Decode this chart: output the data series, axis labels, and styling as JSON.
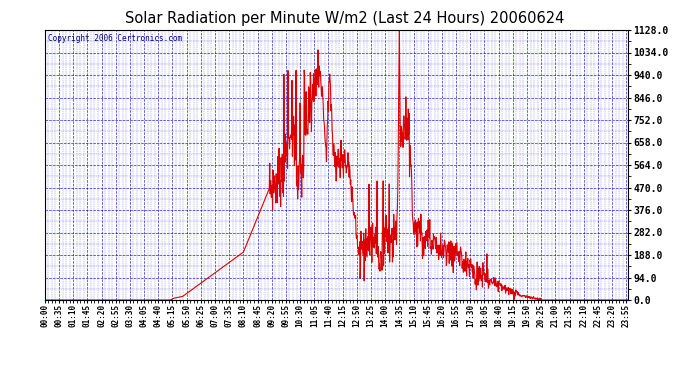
{
  "title": "Solar Radiation per Minute W/m2 (Last 24 Hours) 20060624",
  "copyright": "Copyright 2006 Certronics.com",
  "bg_color": "#ffffff",
  "plot_bg_color": "#ffffff",
  "line_color": "#dd0000",
  "grid_color": "#0000cc",
  "title_color": "#000000",
  "yticks": [
    0.0,
    94.0,
    188.0,
    282.0,
    376.0,
    470.0,
    564.0,
    658.0,
    752.0,
    846.0,
    940.0,
    1034.0,
    1128.0
  ],
  "ylim": [
    0.0,
    1128.0
  ],
  "ylabel_side": "right",
  "xlim_minutes": [
    0,
    1439
  ]
}
